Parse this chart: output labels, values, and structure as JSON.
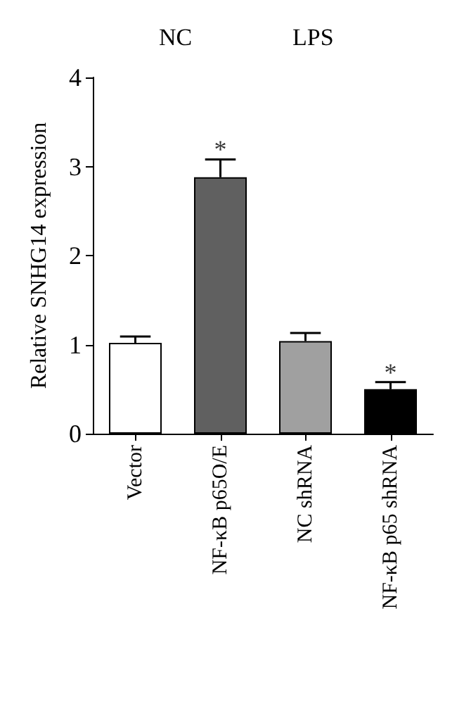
{
  "chart_data": {
    "type": "bar",
    "ylabel": "Relative SNHG14 expression",
    "categories": [
      "Vector",
      "NF-κB p65O/E",
      "NC shRNA",
      "NF-κB p65 shRNA"
    ],
    "values": [
      1.02,
      2.88,
      1.04,
      0.5
    ],
    "colors": [
      "#ffffff",
      "#606060",
      "#a0a0a0",
      "#000000"
    ],
    "errors": [
      0.07,
      0.2,
      0.09,
      0.08
    ],
    "ylim": [
      0,
      4
    ],
    "yticks": [
      0,
      1,
      2,
      3,
      4
    ],
    "grid": false,
    "annotations": [
      "NC",
      "LPS",
      {
        "text": "*",
        "x": "NF-κB p65O/E",
        "y": 3.08
      },
      {
        "text": "*",
        "x": "NF-κB p65 shRNA",
        "y": 0.58
      }
    ]
  }
}
